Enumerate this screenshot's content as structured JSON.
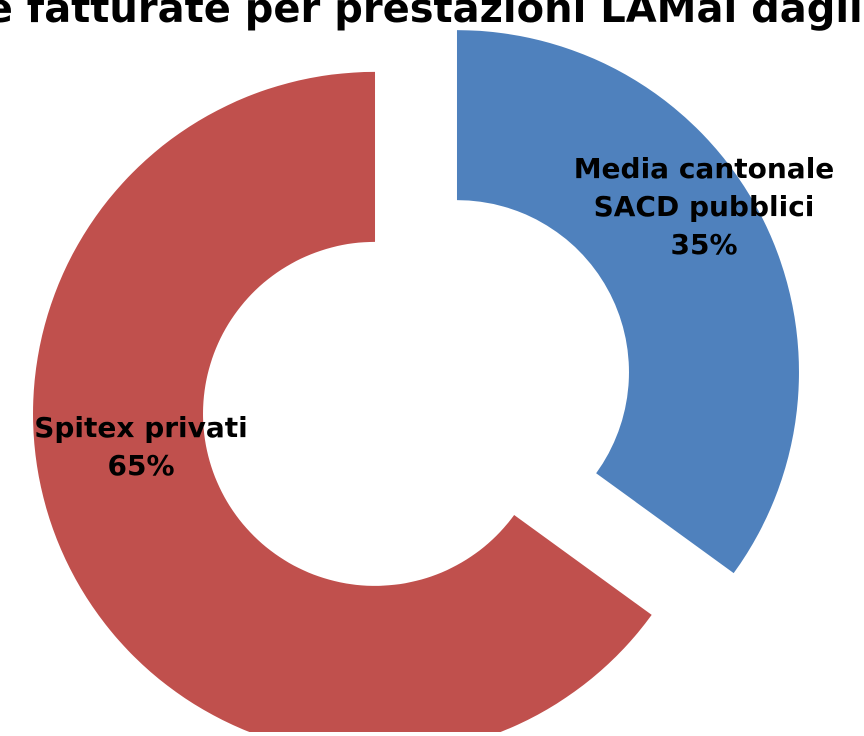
{
  "chart_data": {
    "type": "pie",
    "style": "exploded-donut",
    "title": "Ore fatturate per prestazioni LAMal dagli Spitex privati e mediamente dai SACD pubblici",
    "slices": [
      {
        "key": "sacd",
        "label_lines": [
          "Media cantonale",
          "SACD pubblici"
        ],
        "percent_text": "35%",
        "value": 35,
        "color": "#4f81bd"
      },
      {
        "key": "spitex",
        "label_lines": [
          "Spitex privati"
        ],
        "percent_text": "65%",
        "value": 65,
        "color": "#c0504d"
      }
    ]
  }
}
